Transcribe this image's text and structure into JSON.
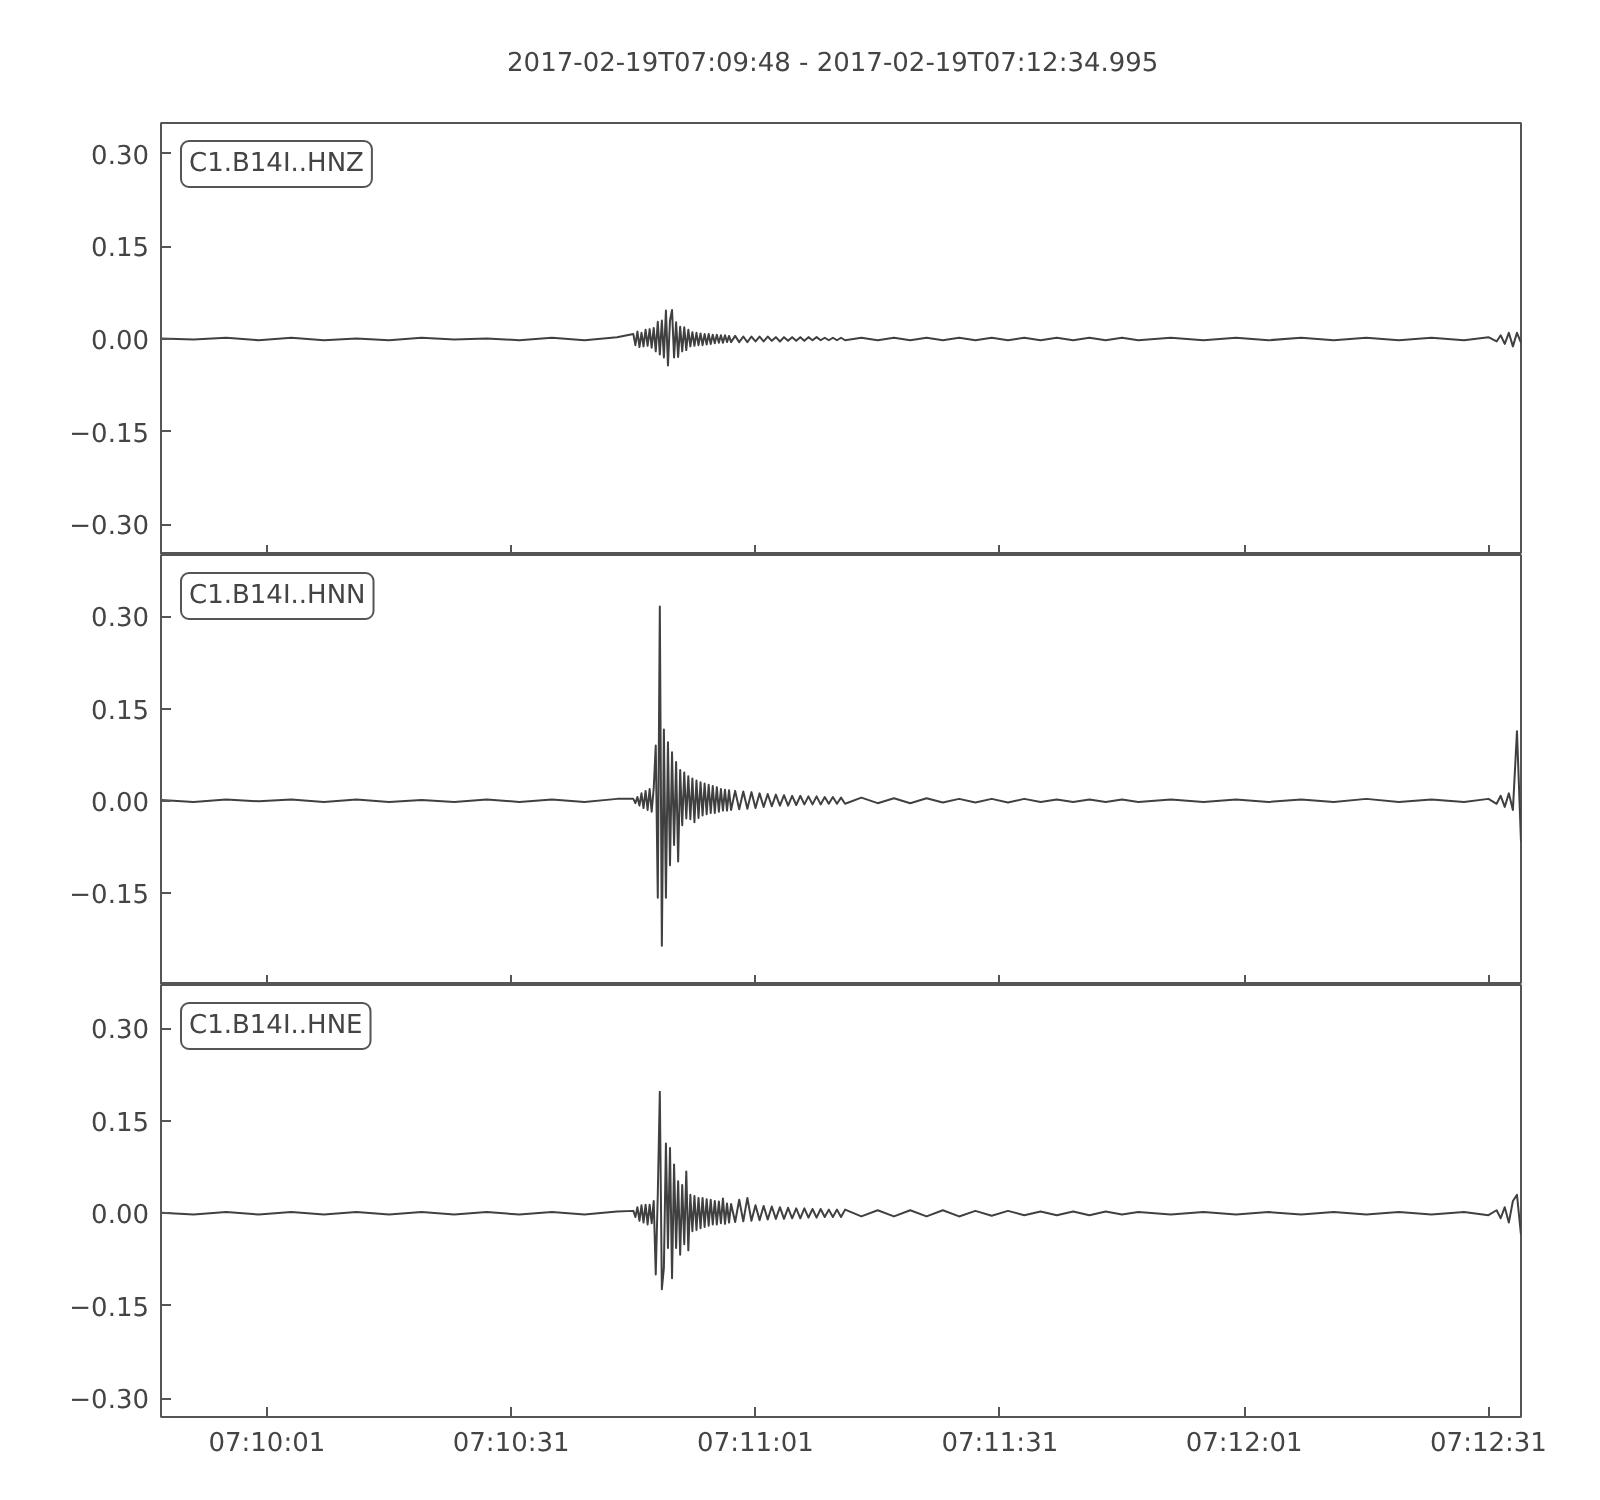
{
  "chart_data": [
    {
      "type": "line",
      "title": "2017-02-19T07:09:48  -  2017-02-19T07:12:34.995",
      "annotations": [
        "C1.B14I..HNZ"
      ],
      "tick_labels": "y",
      "xlim": [
        "2017-02-19T07:09:48",
        "2017-02-19T07:12:34.995"
      ],
      "xticks": [
        {
          "value": "2017-02-19T07:10:01",
          "label": null
        },
        {
          "value": "2017-02-19T07:10:31",
          "label": null
        },
        {
          "value": "2017-02-19T07:11:01",
          "label": null
        },
        {
          "value": "2017-02-19T07:11:31",
          "label": null
        },
        {
          "value": "2017-02-19T07:12:01",
          "label": null
        },
        {
          "value": "2017-02-19T07:12:31",
          "label": null
        }
      ],
      "ylim": [
        -0.35,
        0.35
      ],
      "yticks": [
        {
          "value": -0.3,
          "label": "−0.30"
        },
        {
          "value": -0.15,
          "label": "−0.15"
        },
        {
          "value": 0,
          "label": "0.00"
        },
        {
          "value": 0.15,
          "label": "0.15"
        },
        {
          "value": 0.3,
          "label": "0.30"
        }
      ],
      "x": [
        "2017-02-19T07:09:48",
        "2017-02-19T07:09:52",
        "2017-02-19T07:09:56",
        "2017-02-19T07:10:00",
        "2017-02-19T07:10:04",
        "2017-02-19T07:10:08",
        "2017-02-19T07:10:12",
        "2017-02-19T07:10:16",
        "2017-02-19T07:10:20",
        "2017-02-19T07:10:24",
        "2017-02-19T07:10:28",
        "2017-02-19T07:10:32",
        "2017-02-19T07:10:36",
        "2017-02-19T07:10:40",
        "2017-02-19T07:10:44",
        "2017-02-19T07:10:46",
        "2017-02-19T07:10:46.25",
        "2017-02-19T07:10:46.5",
        "2017-02-19T07:10:46.75",
        "2017-02-19T07:10:47",
        "2017-02-19T07:10:47.25",
        "2017-02-19T07:10:47.5",
        "2017-02-19T07:10:47.75",
        "2017-02-19T07:10:48",
        "2017-02-19T07:10:48.25",
        "2017-02-19T07:10:48.5",
        "2017-02-19T07:10:48.75",
        "2017-02-19T07:10:49",
        "2017-02-19T07:10:49.25",
        "2017-02-19T07:10:49.5",
        "2017-02-19T07:10:49.75",
        "2017-02-19T07:10:50",
        "2017-02-19T07:10:50.25",
        "2017-02-19T07:10:50.5",
        "2017-02-19T07:10:50.75",
        "2017-02-19T07:10:51",
        "2017-02-19T07:10:51.25",
        "2017-02-19T07:10:51.5",
        "2017-02-19T07:10:51.75",
        "2017-02-19T07:10:52",
        "2017-02-19T07:10:52.25",
        "2017-02-19T07:10:52.5",
        "2017-02-19T07:10:52.75",
        "2017-02-19T07:10:53",
        "2017-02-19T07:10:53.25",
        "2017-02-19T07:10:53.5",
        "2017-02-19T07:10:53.75",
        "2017-02-19T07:10:54",
        "2017-02-19T07:10:54.25",
        "2017-02-19T07:10:54.5",
        "2017-02-19T07:10:54.75",
        "2017-02-19T07:10:55",
        "2017-02-19T07:10:55.25",
        "2017-02-19T07:10:55.5",
        "2017-02-19T07:10:55.75",
        "2017-02-19T07:10:56",
        "2017-02-19T07:10:56.25",
        "2017-02-19T07:10:56.5",
        "2017-02-19T07:10:56.75",
        "2017-02-19T07:10:57",
        "2017-02-19T07:10:57.25",
        "2017-02-19T07:10:57.5",
        "2017-02-19T07:10:57.75",
        "2017-02-19T07:10:58",
        "2017-02-19T07:10:58.5",
        "2017-02-19T07:10:59",
        "2017-02-19T07:10:59.5",
        "2017-02-19T07:11:00",
        "2017-02-19T07:11:00.5",
        "2017-02-19T07:11:01",
        "2017-02-19T07:11:01.5",
        "2017-02-19T07:11:02",
        "2017-02-19T07:11:02.5",
        "2017-02-19T07:11:03",
        "2017-02-19T07:11:03.5",
        "2017-02-19T07:11:04",
        "2017-02-19T07:11:04.5",
        "2017-02-19T07:11:05",
        "2017-02-19T07:11:05.5",
        "2017-02-19T07:11:06",
        "2017-02-19T07:11:06.5",
        "2017-02-19T07:11:07",
        "2017-02-19T07:11:07.5",
        "2017-02-19T07:11:08",
        "2017-02-19T07:11:08.5",
        "2017-02-19T07:11:09",
        "2017-02-19T07:11:09.5",
        "2017-02-19T07:11:10",
        "2017-02-19T07:11:10.5",
        "2017-02-19T07:11:11",
        "2017-02-19T07:11:11.5",
        "2017-02-19T07:11:12",
        "2017-02-19T07:11:14",
        "2017-02-19T07:11:16",
        "2017-02-19T07:11:18",
        "2017-02-19T07:11:20",
        "2017-02-19T07:11:22",
        "2017-02-19T07:11:24",
        "2017-02-19T07:11:26",
        "2017-02-19T07:11:28",
        "2017-02-19T07:11:30",
        "2017-02-19T07:11:32",
        "2017-02-19T07:11:34",
        "2017-02-19T07:11:36",
        "2017-02-19T07:11:38",
        "2017-02-19T07:11:40",
        "2017-02-19T07:11:42",
        "2017-02-19T07:11:44",
        "2017-02-19T07:11:46",
        "2017-02-19T07:11:48",
        "2017-02-19T07:11:52",
        "2017-02-19T07:11:56",
        "2017-02-19T07:12:00",
        "2017-02-19T07:12:04",
        "2017-02-19T07:12:08",
        "2017-02-19T07:12:12",
        "2017-02-19T07:12:16",
        "2017-02-19T07:12:20",
        "2017-02-19T07:12:24",
        "2017-02-19T07:12:28",
        "2017-02-19T07:12:31",
        "2017-02-19T07:12:32",
        "2017-02-19T07:12:32.5",
        "2017-02-19T07:12:33",
        "2017-02-19T07:12:33.5",
        "2017-02-19T07:12:34",
        "2017-02-19T07:12:34.5",
        "2017-02-19T07:12:34.995"
      ],
      "series": [
        {
          "color": "#404040",
          "values": [
            0.001,
            -0.001,
            0.002,
            -0.002,
            0.002,
            -0.002,
            0.001,
            -0.002,
            0.002,
            -0.001,
            0.001,
            -0.002,
            0.002,
            -0.002,
            0.003,
            0.008,
            -0.01,
            0.012,
            -0.013,
            0.01,
            -0.012,
            0.015,
            -0.011,
            0.016,
            -0.014,
            0.018,
            -0.02,
            0.028,
            -0.025,
            0.03,
            -0.03,
            0.046,
            -0.043,
            0.03,
            0.047,
            -0.03,
            0.027,
            -0.029,
            0.02,
            -0.02,
            0.019,
            -0.018,
            0.015,
            -0.012,
            0.011,
            -0.011,
            0.01,
            -0.01,
            0.009,
            -0.01,
            0.008,
            -0.009,
            0.008,
            -0.008,
            0.007,
            -0.007,
            0.007,
            -0.006,
            0.006,
            -0.006,
            0.006,
            -0.005,
            0.005,
            -0.005,
            0.005,
            -0.005,
            0.004,
            -0.005,
            0.004,
            -0.004,
            0.004,
            -0.004,
            0.004,
            -0.003,
            0.003,
            -0.004,
            0.003,
            -0.003,
            0.003,
            -0.003,
            0.003,
            -0.003,
            0.003,
            -0.002,
            0.003,
            -0.002,
            0.002,
            -0.002,
            0.002,
            -0.002,
            0.002,
            -0.002,
            0.002,
            -0.002,
            0.002,
            -0.002,
            0.002,
            -0.002,
            0.002,
            -0.002,
            0.002,
            -0.002,
            0.002,
            -0.002,
            0.002,
            -0.002,
            0.002,
            -0.002,
            0.002,
            -0.002,
            0.002,
            -0.002,
            0.002,
            -0.002,
            0.002,
            -0.002,
            0.002,
            -0.002,
            0.002,
            -0.002,
            0.003,
            -0.004,
            0.006,
            -0.008,
            0.01,
            -0.012,
            0.01,
            -0.006
          ]
        }
      ]
    },
    {
      "type": "line",
      "annotations": [
        "C1.B14I..HNN"
      ],
      "tick_labels": "y",
      "xlim": [
        "2017-02-19T07:09:48",
        "2017-02-19T07:12:34.995"
      ],
      "xticks": [
        {
          "value": "2017-02-19T07:10:01",
          "label": null
        },
        {
          "value": "2017-02-19T07:10:31",
          "label": null
        },
        {
          "value": "2017-02-19T07:11:01",
          "label": null
        },
        {
          "value": "2017-02-19T07:11:31",
          "label": null
        },
        {
          "value": "2017-02-19T07:12:01",
          "label": null
        },
        {
          "value": "2017-02-19T07:12:31",
          "label": null
        }
      ],
      "ylim": [
        -0.3,
        0.4
      ],
      "yticks": [
        {
          "value": -0.15,
          "label": "−0.15"
        },
        {
          "value": 0,
          "label": "0.00"
        },
        {
          "value": 0.15,
          "label": "0.15"
        },
        {
          "value": 0.3,
          "label": "0.30"
        }
      ],
      "x": [
        "2017-02-19T07:09:48",
        "2017-02-19T07:09:52",
        "2017-02-19T07:09:56",
        "2017-02-19T07:10:00",
        "2017-02-19T07:10:04",
        "2017-02-19T07:10:08",
        "2017-02-19T07:10:12",
        "2017-02-19T07:10:16",
        "2017-02-19T07:10:20",
        "2017-02-19T07:10:24",
        "2017-02-19T07:10:28",
        "2017-02-19T07:10:32",
        "2017-02-19T07:10:36",
        "2017-02-19T07:10:40",
        "2017-02-19T07:10:44",
        "2017-02-19T07:10:46",
        "2017-02-19T07:10:46.25",
        "2017-02-19T07:10:46.5",
        "2017-02-19T07:10:46.75",
        "2017-02-19T07:10:47",
        "2017-02-19T07:10:47.25",
        "2017-02-19T07:10:47.5",
        "2017-02-19T07:10:47.75",
        "2017-02-19T07:10:48",
        "2017-02-19T07:10:48.25",
        "2017-02-19T07:10:48.5",
        "2017-02-19T07:10:48.75",
        "2017-02-19T07:10:49",
        "2017-02-19T07:10:49.25",
        "2017-02-19T07:10:49.5",
        "2017-02-19T07:10:49.75",
        "2017-02-19T07:10:50",
        "2017-02-19T07:10:50.25",
        "2017-02-19T07:10:50.5",
        "2017-02-19T07:10:50.75",
        "2017-02-19T07:10:51",
        "2017-02-19T07:10:51.25",
        "2017-02-19T07:10:51.5",
        "2017-02-19T07:10:51.75",
        "2017-02-19T07:10:52",
        "2017-02-19T07:10:52.25",
        "2017-02-19T07:10:52.5",
        "2017-02-19T07:10:52.75",
        "2017-02-19T07:10:53",
        "2017-02-19T07:10:53.25",
        "2017-02-19T07:10:53.5",
        "2017-02-19T07:10:53.75",
        "2017-02-19T07:10:54",
        "2017-02-19T07:10:54.25",
        "2017-02-19T07:10:54.5",
        "2017-02-19T07:10:54.75",
        "2017-02-19T07:10:55",
        "2017-02-19T07:10:55.25",
        "2017-02-19T07:10:55.5",
        "2017-02-19T07:10:55.75",
        "2017-02-19T07:10:56",
        "2017-02-19T07:10:56.25",
        "2017-02-19T07:10:56.5",
        "2017-02-19T07:10:56.75",
        "2017-02-19T07:10:57",
        "2017-02-19T07:10:57.25",
        "2017-02-19T07:10:57.5",
        "2017-02-19T07:10:57.75",
        "2017-02-19T07:10:58",
        "2017-02-19T07:10:58.5",
        "2017-02-19T07:10:59",
        "2017-02-19T07:10:59.5",
        "2017-02-19T07:11:00",
        "2017-02-19T07:11:00.5",
        "2017-02-19T07:11:01",
        "2017-02-19T07:11:01.5",
        "2017-02-19T07:11:02",
        "2017-02-19T07:11:02.5",
        "2017-02-19T07:11:03",
        "2017-02-19T07:11:03.5",
        "2017-02-19T07:11:04",
        "2017-02-19T07:11:04.5",
        "2017-02-19T07:11:05",
        "2017-02-19T07:11:05.5",
        "2017-02-19T07:11:06",
        "2017-02-19T07:11:06.5",
        "2017-02-19T07:11:07",
        "2017-02-19T07:11:07.5",
        "2017-02-19T07:11:08",
        "2017-02-19T07:11:08.5",
        "2017-02-19T07:11:09",
        "2017-02-19T07:11:09.5",
        "2017-02-19T07:11:10",
        "2017-02-19T07:11:10.5",
        "2017-02-19T07:11:11",
        "2017-02-19T07:11:11.5",
        "2017-02-19T07:11:12",
        "2017-02-19T07:11:14",
        "2017-02-19T07:11:16",
        "2017-02-19T07:11:18",
        "2017-02-19T07:11:20",
        "2017-02-19T07:11:22",
        "2017-02-19T07:11:24",
        "2017-02-19T07:11:26",
        "2017-02-19T07:11:28",
        "2017-02-19T07:11:30",
        "2017-02-19T07:11:32",
        "2017-02-19T07:11:34",
        "2017-02-19T07:11:36",
        "2017-02-19T07:11:38",
        "2017-02-19T07:11:40",
        "2017-02-19T07:11:42",
        "2017-02-19T07:11:44",
        "2017-02-19T07:11:46",
        "2017-02-19T07:11:48",
        "2017-02-19T07:11:52",
        "2017-02-19T07:11:56",
        "2017-02-19T07:12:00",
        "2017-02-19T07:12:04",
        "2017-02-19T07:12:08",
        "2017-02-19T07:12:12",
        "2017-02-19T07:12:16",
        "2017-02-19T07:12:20",
        "2017-02-19T07:12:24",
        "2017-02-19T07:12:28",
        "2017-02-19T07:12:31",
        "2017-02-19T07:12:32",
        "2017-02-19T07:12:32.5",
        "2017-02-19T07:12:33",
        "2017-02-19T07:12:33.5",
        "2017-02-19T07:12:34",
        "2017-02-19T07:12:34.5",
        "2017-02-19T07:12:34.995"
      ],
      "series": [
        {
          "color": "#404040",
          "values": [
            0.001,
            -0.002,
            0.002,
            -0.001,
            0.002,
            -0.002,
            0.002,
            -0.002,
            0.001,
            -0.002,
            0.002,
            -0.002,
            0.002,
            -0.002,
            0.003,
            0.003,
            -0.004,
            0.006,
            -0.008,
            0.012,
            -0.012,
            0.016,
            -0.015,
            0.019,
            -0.018,
            0.02,
            0.09,
            -0.158,
            0.316,
            -0.236,
            0.116,
            -0.158,
            0.095,
            -0.105,
            0.079,
            -0.072,
            0.063,
            -0.099,
            0.05,
            -0.04,
            0.046,
            -0.029,
            0.04,
            -0.03,
            0.036,
            -0.035,
            0.033,
            -0.028,
            0.03,
            -0.024,
            0.028,
            -0.022,
            0.026,
            -0.02,
            0.024,
            -0.02,
            0.022,
            -0.018,
            0.019,
            -0.016,
            0.018,
            -0.016,
            0.017,
            -0.015,
            0.016,
            -0.014,
            0.015,
            -0.013,
            0.014,
            -0.012,
            0.012,
            -0.01,
            0.011,
            -0.009,
            0.01,
            -0.008,
            0.009,
            -0.008,
            0.008,
            -0.007,
            0.008,
            -0.006,
            0.007,
            -0.006,
            0.007,
            -0.006,
            0.006,
            -0.005,
            0.006,
            -0.005,
            0.005,
            -0.005,
            0.005,
            -0.004,
            0.004,
            -0.004,
            0.004,
            -0.003,
            0.003,
            -0.003,
            0.003,
            -0.003,
            0.003,
            -0.002,
            0.002,
            -0.002,
            0.002,
            -0.002,
            0.002,
            -0.002,
            0.002,
            -0.002,
            0.002,
            -0.002,
            0.002,
            -0.002,
            0.003,
            -0.002,
            0.002,
            -0.002,
            0.003,
            -0.005,
            0.008,
            -0.01,
            0.012,
            -0.015,
            0.113,
            -0.067
          ]
        }
      ]
    },
    {
      "type": "line",
      "annotations": [
        "C1.B14I..HNE"
      ],
      "xlim": [
        "2017-02-19T07:09:48",
        "2017-02-19T07:12:34.995"
      ],
      "xticks": [
        {
          "value": "2017-02-19T07:10:01",
          "label": "07:10:01"
        },
        {
          "value": "2017-02-19T07:10:31",
          "label": "07:10:31"
        },
        {
          "value": "2017-02-19T07:11:01",
          "label": "07:11:01"
        },
        {
          "value": "2017-02-19T07:11:31",
          "label": "07:11:31"
        },
        {
          "value": "2017-02-19T07:12:01",
          "label": "07:12:01"
        },
        {
          "value": "2017-02-19T07:12:31",
          "label": "07:12:31"
        }
      ],
      "ylim": [
        -0.33,
        0.37
      ],
      "yticks": [
        {
          "value": -0.3,
          "label": "−0.30"
        },
        {
          "value": -0.15,
          "label": "−0.15"
        },
        {
          "value": 0,
          "label": "0.00"
        },
        {
          "value": 0.15,
          "label": "0.15"
        },
        {
          "value": 0.3,
          "label": "0.30"
        }
      ],
      "x": [
        "2017-02-19T07:09:48",
        "2017-02-19T07:09:52",
        "2017-02-19T07:09:56",
        "2017-02-19T07:10:00",
        "2017-02-19T07:10:04",
        "2017-02-19T07:10:08",
        "2017-02-19T07:10:12",
        "2017-02-19T07:10:16",
        "2017-02-19T07:10:20",
        "2017-02-19T07:10:24",
        "2017-02-19T07:10:28",
        "2017-02-19T07:10:32",
        "2017-02-19T07:10:36",
        "2017-02-19T07:10:40",
        "2017-02-19T07:10:44",
        "2017-02-19T07:10:46",
        "2017-02-19T07:10:46.25",
        "2017-02-19T07:10:46.5",
        "2017-02-19T07:10:46.75",
        "2017-02-19T07:10:47",
        "2017-02-19T07:10:47.25",
        "2017-02-19T07:10:47.5",
        "2017-02-19T07:10:47.75",
        "2017-02-19T07:10:48",
        "2017-02-19T07:10:48.25",
        "2017-02-19T07:10:48.5",
        "2017-02-19T07:10:48.75",
        "2017-02-19T07:10:49",
        "2017-02-19T07:10:49.25",
        "2017-02-19T07:10:49.5",
        "2017-02-19T07:10:49.75",
        "2017-02-19T07:10:50",
        "2017-02-19T07:10:50.25",
        "2017-02-19T07:10:50.5",
        "2017-02-19T07:10:50.75",
        "2017-02-19T07:10:51",
        "2017-02-19T07:10:51.25",
        "2017-02-19T07:10:51.5",
        "2017-02-19T07:10:51.75",
        "2017-02-19T07:10:52",
        "2017-02-19T07:10:52.25",
        "2017-02-19T07:10:52.5",
        "2017-02-19T07:10:52.75",
        "2017-02-19T07:10:53",
        "2017-02-19T07:10:53.25",
        "2017-02-19T07:10:53.5",
        "2017-02-19T07:10:53.75",
        "2017-02-19T07:10:54",
        "2017-02-19T07:10:54.25",
        "2017-02-19T07:10:54.5",
        "2017-02-19T07:10:54.75",
        "2017-02-19T07:10:55",
        "2017-02-19T07:10:55.25",
        "2017-02-19T07:10:55.5",
        "2017-02-19T07:10:55.75",
        "2017-02-19T07:10:56",
        "2017-02-19T07:10:56.25",
        "2017-02-19T07:10:56.5",
        "2017-02-19T07:10:56.75",
        "2017-02-19T07:10:57",
        "2017-02-19T07:10:57.25",
        "2017-02-19T07:10:57.5",
        "2017-02-19T07:10:57.75",
        "2017-02-19T07:10:58",
        "2017-02-19T07:10:58.5",
        "2017-02-19T07:10:59",
        "2017-02-19T07:10:59.5",
        "2017-02-19T07:11:00",
        "2017-02-19T07:11:00.5",
        "2017-02-19T07:11:01",
        "2017-02-19T07:11:01.5",
        "2017-02-19T07:11:02",
        "2017-02-19T07:11:02.5",
        "2017-02-19T07:11:03",
        "2017-02-19T07:11:03.5",
        "2017-02-19T07:11:04",
        "2017-02-19T07:11:04.5",
        "2017-02-19T07:11:05",
        "2017-02-19T07:11:05.5",
        "2017-02-19T07:11:06",
        "2017-02-19T07:11:06.5",
        "2017-02-19T07:11:07",
        "2017-02-19T07:11:07.5",
        "2017-02-19T07:11:08",
        "2017-02-19T07:11:08.5",
        "2017-02-19T07:11:09",
        "2017-02-19T07:11:09.5",
        "2017-02-19T07:11:10",
        "2017-02-19T07:11:10.5",
        "2017-02-19T07:11:11",
        "2017-02-19T07:11:11.5",
        "2017-02-19T07:11:12",
        "2017-02-19T07:11:14",
        "2017-02-19T07:11:16",
        "2017-02-19T07:11:18",
        "2017-02-19T07:11:20",
        "2017-02-19T07:11:22",
        "2017-02-19T07:11:24",
        "2017-02-19T07:11:26",
        "2017-02-19T07:11:28",
        "2017-02-19T07:11:30",
        "2017-02-19T07:11:32",
        "2017-02-19T07:11:34",
        "2017-02-19T07:11:36",
        "2017-02-19T07:11:38",
        "2017-02-19T07:11:40",
        "2017-02-19T07:11:42",
        "2017-02-19T07:11:44",
        "2017-02-19T07:11:46",
        "2017-02-19T07:11:48",
        "2017-02-19T07:11:52",
        "2017-02-19T07:11:56",
        "2017-02-19T07:12:00",
        "2017-02-19T07:12:04",
        "2017-02-19T07:12:08",
        "2017-02-19T07:12:12",
        "2017-02-19T07:12:16",
        "2017-02-19T07:12:20",
        "2017-02-19T07:12:24",
        "2017-02-19T07:12:28",
        "2017-02-19T07:12:31",
        "2017-02-19T07:12:32",
        "2017-02-19T07:12:32.5",
        "2017-02-19T07:12:33",
        "2017-02-19T07:12:33.5",
        "2017-02-19T07:12:34",
        "2017-02-19T07:12:34.5",
        "2017-02-19T07:12:34.995"
      ],
      "series": [
        {
          "color": "#404040",
          "values": [
            0.001,
            -0.002,
            0.002,
            -0.002,
            0.002,
            -0.002,
            0.002,
            -0.002,
            0.002,
            -0.002,
            0.002,
            -0.002,
            0.002,
            -0.002,
            0.003,
            0.004,
            -0.006,
            0.01,
            -0.012,
            0.013,
            -0.015,
            0.014,
            -0.018,
            0.014,
            -0.016,
            0.02,
            -0.099,
            0.03,
            0.197,
            -0.123,
            -0.088,
            0.113,
            -0.056,
            0.106,
            -0.105,
            0.079,
            -0.056,
            0.052,
            -0.067,
            0.046,
            -0.05,
            0.068,
            -0.06,
            0.03,
            -0.029,
            0.028,
            -0.027,
            0.025,
            -0.024,
            0.025,
            -0.022,
            0.023,
            -0.02,
            0.022,
            -0.018,
            0.02,
            -0.018,
            0.019,
            -0.016,
            0.024,
            -0.017,
            0.016,
            -0.015,
            0.015,
            -0.014,
            0.022,
            -0.013,
            0.025,
            -0.012,
            0.013,
            -0.011,
            0.012,
            -0.01,
            0.011,
            -0.009,
            0.01,
            -0.009,
            0.009,
            -0.008,
            0.008,
            -0.008,
            0.008,
            -0.007,
            0.007,
            -0.007,
            0.007,
            -0.006,
            0.006,
            -0.006,
            0.006,
            -0.006,
            0.006,
            -0.005,
            0.005,
            -0.005,
            0.005,
            -0.005,
            0.005,
            -0.005,
            0.004,
            -0.004,
            0.004,
            -0.003,
            0.003,
            -0.003,
            0.003,
            -0.003,
            0.003,
            -0.002,
            0.002,
            -0.002,
            0.002,
            -0.002,
            0.002,
            -0.002,
            0.002,
            -0.002,
            0.002,
            -0.002,
            0.002,
            -0.003,
            0.005,
            -0.008,
            0.01,
            -0.015,
            0.02,
            0.03,
            -0.035
          ]
        }
      ]
    }
  ]
}
